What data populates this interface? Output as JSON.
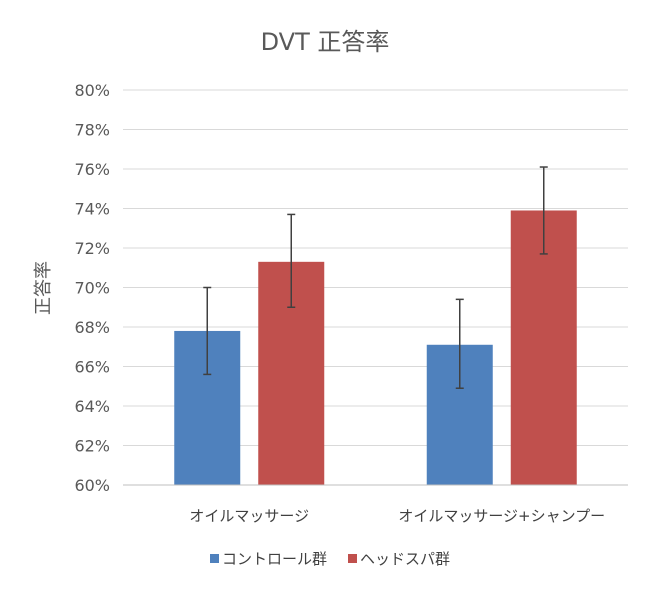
{
  "chart_data": {
    "type": "bar",
    "title": "DVT 正答率",
    "ylabel": "正答率",
    "xlabel": "",
    "ylim": [
      60,
      80
    ],
    "ytick_step": 2,
    "ytick_suffix": "%",
    "grid": true,
    "legend_position": "bottom",
    "categories": [
      "オイルマッサージ",
      "オイルマッサージ+シャンプー"
    ],
    "series": [
      {
        "name": "コントロール群",
        "color": "#4f81bd",
        "values": [
          67.8,
          67.1
        ],
        "error_low": [
          65.6,
          64.9
        ],
        "error_high": [
          70.0,
          69.4
        ]
      },
      {
        "name": "ヘッドスパ群",
        "color": "#c0504d",
        "values": [
          71.3,
          73.9
        ],
        "error_low": [
          69.0,
          71.7
        ],
        "error_high": [
          73.7,
          76.1
        ]
      }
    ]
  }
}
